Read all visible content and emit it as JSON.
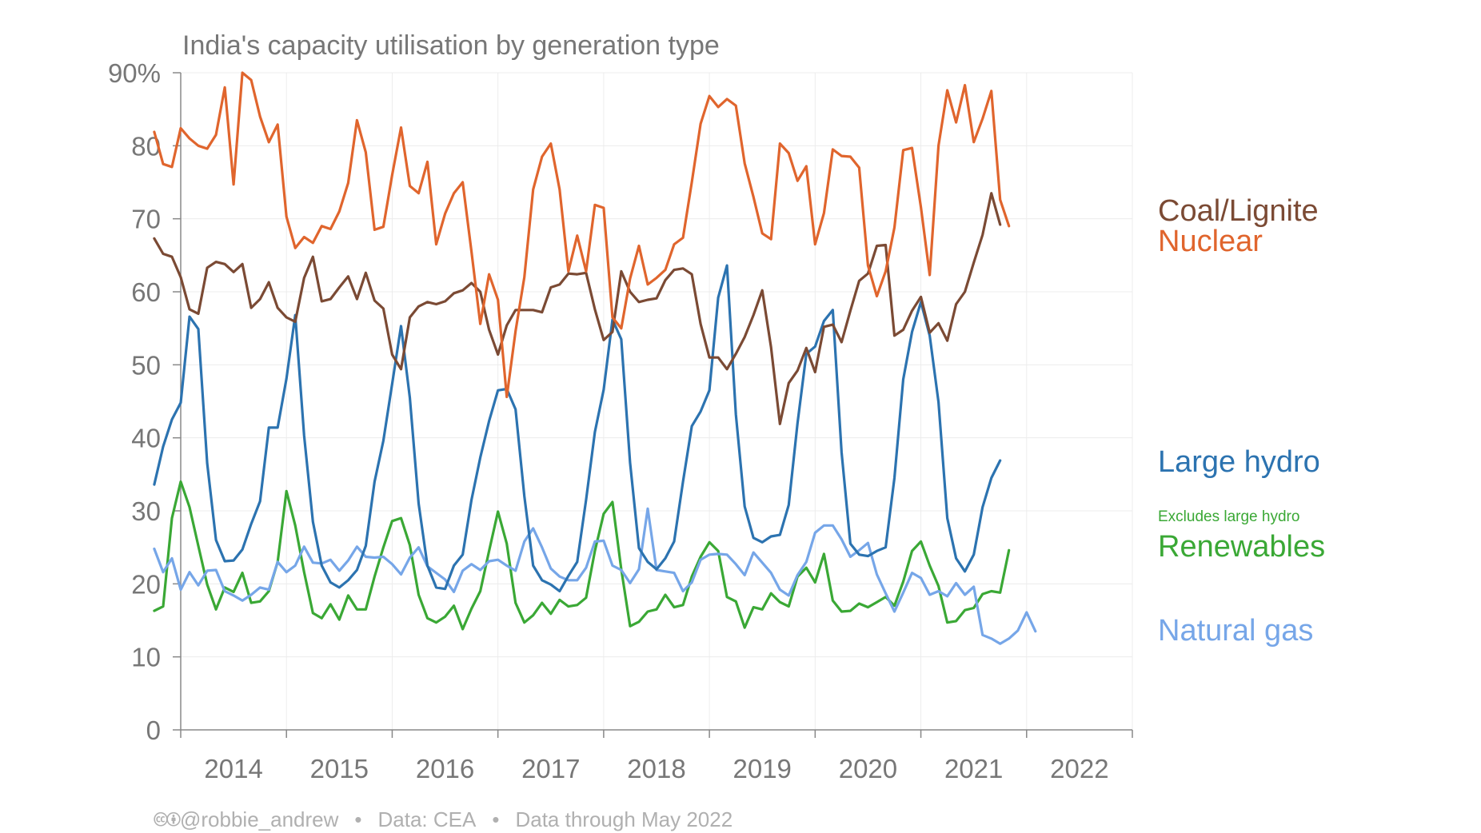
{
  "colors": {
    "coal": "#7b4a34",
    "nuclear": "#e0652d",
    "hydro": "#2c73b0",
    "renewables": "#3aa835",
    "gas": "#76a6e8"
  },
  "footer": {
    "cc_icons": "🅭🅯",
    "credit": "@robbie_andrew",
    "bullet": "•",
    "source": "Data: CEA",
    "through": "Data through May 2022"
  },
  "chart_data": {
    "type": "line",
    "title": "India's capacity utilisation by generation type",
    "ylim": [
      0,
      90
    ],
    "xlim": [
      2013.5,
      2022.5
    ],
    "y_ticks": [
      0,
      10,
      20,
      30,
      40,
      50,
      60,
      70,
      80,
      90
    ],
    "y_tick_labels": [
      "0",
      "10",
      "20",
      "30",
      "40",
      "50",
      "60",
      "70",
      "80",
      "90%"
    ],
    "x_tick_labels": [
      "2014",
      "2015",
      "2016",
      "2017",
      "2018",
      "2019",
      "2020",
      "2021",
      "2022"
    ],
    "grid": true,
    "legend": "direct labels at right",
    "annotation": "Excludes large hydro",
    "start": "2013-04",
    "end": "2022-05",
    "series": [
      {
        "key": "coal",
        "name": "Coal/Lignite",
        "values": [
          67.3,
          65.2,
          64.8,
          62,
          57.6,
          57,
          63.3,
          64.1,
          63.8,
          62.7,
          63.8,
          57.8,
          59,
          61.3,
          57.8,
          56.5,
          55.9,
          61.9,
          64.8,
          58.7,
          59,
          60.6,
          62.1,
          59,
          62.6,
          58.8,
          57.7,
          51.4,
          49.4,
          56.5,
          58,
          58.6,
          58.3,
          58.7,
          59.8,
          60.2,
          61.2,
          60,
          54.8,
          51.4,
          55.4,
          57.5,
          57.5,
          57.5,
          57.2,
          60.6,
          61,
          62.5,
          62.4,
          62.6,
          57.6,
          53.4,
          54.5,
          62.8,
          60,
          58.6,
          58.9,
          59.1,
          61.6,
          63,
          63.2,
          62.4,
          55.6,
          51,
          51,
          49.4,
          51.5,
          53.8,
          56.8,
          60.2,
          52.4,
          41.9,
          47.5,
          49.2,
          52.3,
          49,
          55.2,
          55.5,
          53.1,
          57.4,
          61.5,
          62.5,
          66.3,
          66.4,
          54,
          54.8,
          57.4,
          59.3,
          54.4,
          55.7,
          53.3,
          58.3,
          60,
          64,
          67.8,
          73.5,
          69.2
        ]
      },
      {
        "key": "nuclear",
        "name": "Nuclear",
        "values": [
          81.9,
          77.5,
          77.1,
          82.4,
          81,
          80,
          79.6,
          81.5,
          88,
          74.7,
          90,
          89,
          84,
          80.5,
          82.9,
          70.3,
          66,
          67.5,
          66.7,
          69,
          68.6,
          71,
          74.9,
          83.5,
          79.1,
          68.5,
          68.9,
          76,
          82.5,
          74.5,
          73.5,
          77.8,
          66.5,
          70.7,
          73.5,
          75,
          65.5,
          55.6,
          62.4,
          58.9,
          45.6,
          54.6,
          62,
          74,
          78.5,
          80.3,
          74,
          62.8,
          67.7,
          62.8,
          71.9,
          71.5,
          56.5,
          55,
          61.8,
          66.3,
          61,
          61.9,
          63,
          66.5,
          67.4,
          75,
          83,
          86.8,
          85.3,
          86.4,
          85.5,
          77.6,
          73,
          68,
          67.2,
          80.3,
          79,
          75.2,
          77.2,
          66.5,
          70.8,
          79.5,
          78.6,
          78.5,
          77,
          63.6,
          59.4,
          62.8,
          68.8,
          79.4,
          79.7,
          71.6,
          62.3,
          80,
          87.6,
          83.2,
          88.3,
          80.5,
          83.7,
          87.5,
          72.6,
          69
        ]
      },
      {
        "key": "hydro",
        "name": "Large hydro",
        "values": [
          33.6,
          38.8,
          42.5,
          44.8,
          56.6,
          54.9,
          36.5,
          26,
          23.1,
          23.2,
          24.7,
          28.2,
          31.3,
          41.4,
          41.4,
          48.1,
          56.8,
          40.3,
          28.5,
          22.5,
          20.2,
          19.5,
          20.5,
          21.9,
          25.2,
          34,
          39.6,
          47.4,
          55.3,
          45.5,
          31,
          22.5,
          19.5,
          19.3,
          22.5,
          24,
          31.5,
          37.3,
          42.3,
          46.5,
          46.7,
          43.9,
          32,
          22.5,
          20.5,
          19.9,
          19,
          21.1,
          23,
          31.5,
          40.8,
          46.6,
          56.2,
          53.5,
          36.6,
          24.9,
          23,
          22,
          23.5,
          25.8,
          34,
          41.6,
          43.6,
          46.5,
          59.2,
          63.6,
          43.2,
          30.6,
          26.3,
          25.7,
          26.5,
          26.7,
          30.8,
          42,
          51.5,
          52.5,
          56,
          57.5,
          38,
          25.5,
          24,
          23.8,
          24.5,
          25,
          34.5,
          48,
          54.5,
          58.6,
          54,
          44.9,
          29,
          23.5,
          21.7,
          24,
          30.5,
          34.5,
          36.9
        ]
      },
      {
        "key": "renewables",
        "name": "Renewables",
        "values": [
          16.3,
          16.9,
          29,
          34,
          30.5,
          25.2,
          19.9,
          16.5,
          19.5,
          18.9,
          21.5,
          17.4,
          17.6,
          19,
          23,
          32.7,
          28,
          21.6,
          16,
          15.3,
          17.2,
          15.1,
          18.4,
          16.5,
          16.5,
          21,
          25,
          28.6,
          29,
          25.3,
          18.5,
          15.3,
          14.7,
          15.5,
          17,
          13.8,
          16.6,
          19,
          24.5,
          29.9,
          25.5,
          17.4,
          14.7,
          15.7,
          17.4,
          15.9,
          17.8,
          16.9,
          17.1,
          18.1,
          24.5,
          29.6,
          31.2,
          22,
          14.2,
          14.8,
          16.2,
          16.5,
          18.5,
          16.8,
          17.1,
          21,
          23.7,
          25.7,
          24.5,
          18.2,
          17.6,
          14,
          16.8,
          16.5,
          18.7,
          17.5,
          16.9,
          21,
          22.2,
          20.2,
          24.1,
          17.7,
          16.2,
          16.3,
          17.3,
          16.8,
          17.5,
          18.2,
          17,
          20.3,
          24.5,
          25.8,
          22.5,
          19.7,
          14.7,
          14.9,
          16.4,
          16.7,
          18.6,
          19,
          18.8,
          24.6
        ]
      },
      {
        "key": "gas",
        "name": "Natural gas",
        "values": [
          24.8,
          21.6,
          23.5,
          19.2,
          21.6,
          19.8,
          21.8,
          21.9,
          19,
          18.4,
          17.7,
          18.5,
          19.5,
          19.2,
          23,
          21.6,
          22.5,
          25.1,
          22.9,
          22.8,
          23.3,
          21.8,
          23.2,
          25.1,
          23.7,
          23.6,
          23.7,
          22.7,
          21.3,
          23.6,
          25,
          22.4,
          21.5,
          20.6,
          18.9,
          21.8,
          22.7,
          21.9,
          23.1,
          23.3,
          22.5,
          21.8,
          25.8,
          27.6,
          25,
          22.1,
          21,
          20.5,
          20.5,
          22.2,
          25.8,
          25.9,
          22.5,
          21.9,
          20.1,
          22,
          30.3,
          21.9,
          21.7,
          21.5,
          19,
          20.2,
          23.3,
          24,
          24.1,
          24,
          22.7,
          21.2,
          24.3,
          22.9,
          21.5,
          19.2,
          18.4,
          21.2,
          23,
          27,
          28,
          28,
          26.1,
          23.7,
          24.6,
          25.6,
          21.3,
          18.7,
          16.2,
          18.8,
          21.5,
          20.8,
          18.5,
          19,
          18.3,
          20.1,
          18.5,
          19.6,
          13,
          12.5,
          11.8,
          12.5,
          13.6,
          16.1,
          13.5
        ]
      }
    ]
  },
  "labels": {
    "coal": "Coal/Lignite",
    "nuclear": "Nuclear",
    "hydro": "Large hydro",
    "renewables_note": "Excludes large hydro",
    "renewables": "Renewables",
    "gas": "Natural gas"
  }
}
